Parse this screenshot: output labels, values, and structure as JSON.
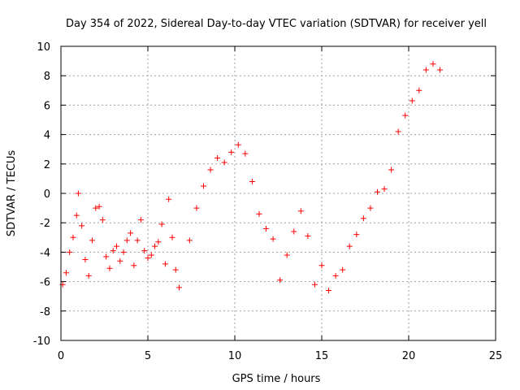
{
  "chart_data": {
    "type": "scatter",
    "title": "Day 354 of 2022, Sidereal Day-to-day VTEC variation (SDTVAR) for receiver yell",
    "xlabel": "GPS time / hours",
    "ylabel": "SDTVAR / TECUs",
    "xlim": [
      0,
      25
    ],
    "ylim": [
      -10,
      10
    ],
    "xticks": [
      0,
      5,
      10,
      15,
      20,
      25
    ],
    "yticks": [
      -10,
      -8,
      -6,
      -4,
      -2,
      0,
      2,
      4,
      6,
      8,
      10
    ],
    "grid": true,
    "marker": "+",
    "color": "#ff0000",
    "series": [
      {
        "name": "SDTVAR",
        "x": [
          0.1,
          0.3,
          0.5,
          0.7,
          0.9,
          1.0,
          1.2,
          1.4,
          1.6,
          1.8,
          2.0,
          2.2,
          2.4,
          2.6,
          2.8,
          3.0,
          3.2,
          3.4,
          3.6,
          3.8,
          4.0,
          4.2,
          4.4,
          4.6,
          4.8,
          5.0,
          5.2,
          5.4,
          5.6,
          5.8,
          6.0,
          6.2,
          6.4,
          6.6,
          6.8,
          7.4,
          7.8,
          8.2,
          8.6,
          9.0,
          9.4,
          9.8,
          10.2,
          10.6,
          11.0,
          11.4,
          11.8,
          12.2,
          12.6,
          13.0,
          13.4,
          13.8,
          14.2,
          14.6,
          15.0,
          15.4,
          15.8,
          16.2,
          16.6,
          17.0,
          17.4,
          17.8,
          18.2,
          18.6,
          19.0,
          19.4,
          19.8,
          20.2,
          20.6,
          21.0,
          21.4,
          21.8
        ],
        "y": [
          -6.2,
          -5.4,
          -4.0,
          -3.0,
          -1.5,
          0.0,
          -2.2,
          -4.5,
          -5.6,
          -3.2,
          -1.0,
          -0.9,
          -1.8,
          -4.3,
          -5.1,
          -3.9,
          -3.6,
          -4.6,
          -4.0,
          -3.2,
          -2.7,
          -4.9,
          -3.2,
          -1.8,
          -3.9,
          -4.4,
          -4.2,
          -3.6,
          -3.3,
          -2.1,
          -4.8,
          -0.4,
          -3.0,
          -5.2,
          -6.4,
          -3.2,
          -1.0,
          0.5,
          1.6,
          2.4,
          2.1,
          2.8,
          3.3,
          2.7,
          0.8,
          -1.4,
          -2.4,
          -3.1,
          -5.9,
          -4.2,
          -2.6,
          -1.2,
          -2.9,
          -6.2,
          -4.9,
          -6.6,
          -5.6,
          -5.2,
          -3.6,
          -2.8,
          -1.7,
          -1.0,
          0.1,
          0.3,
          1.6,
          4.2,
          5.3,
          6.3,
          7.0,
          8.4,
          8.8,
          8.4
        ]
      }
    ]
  }
}
